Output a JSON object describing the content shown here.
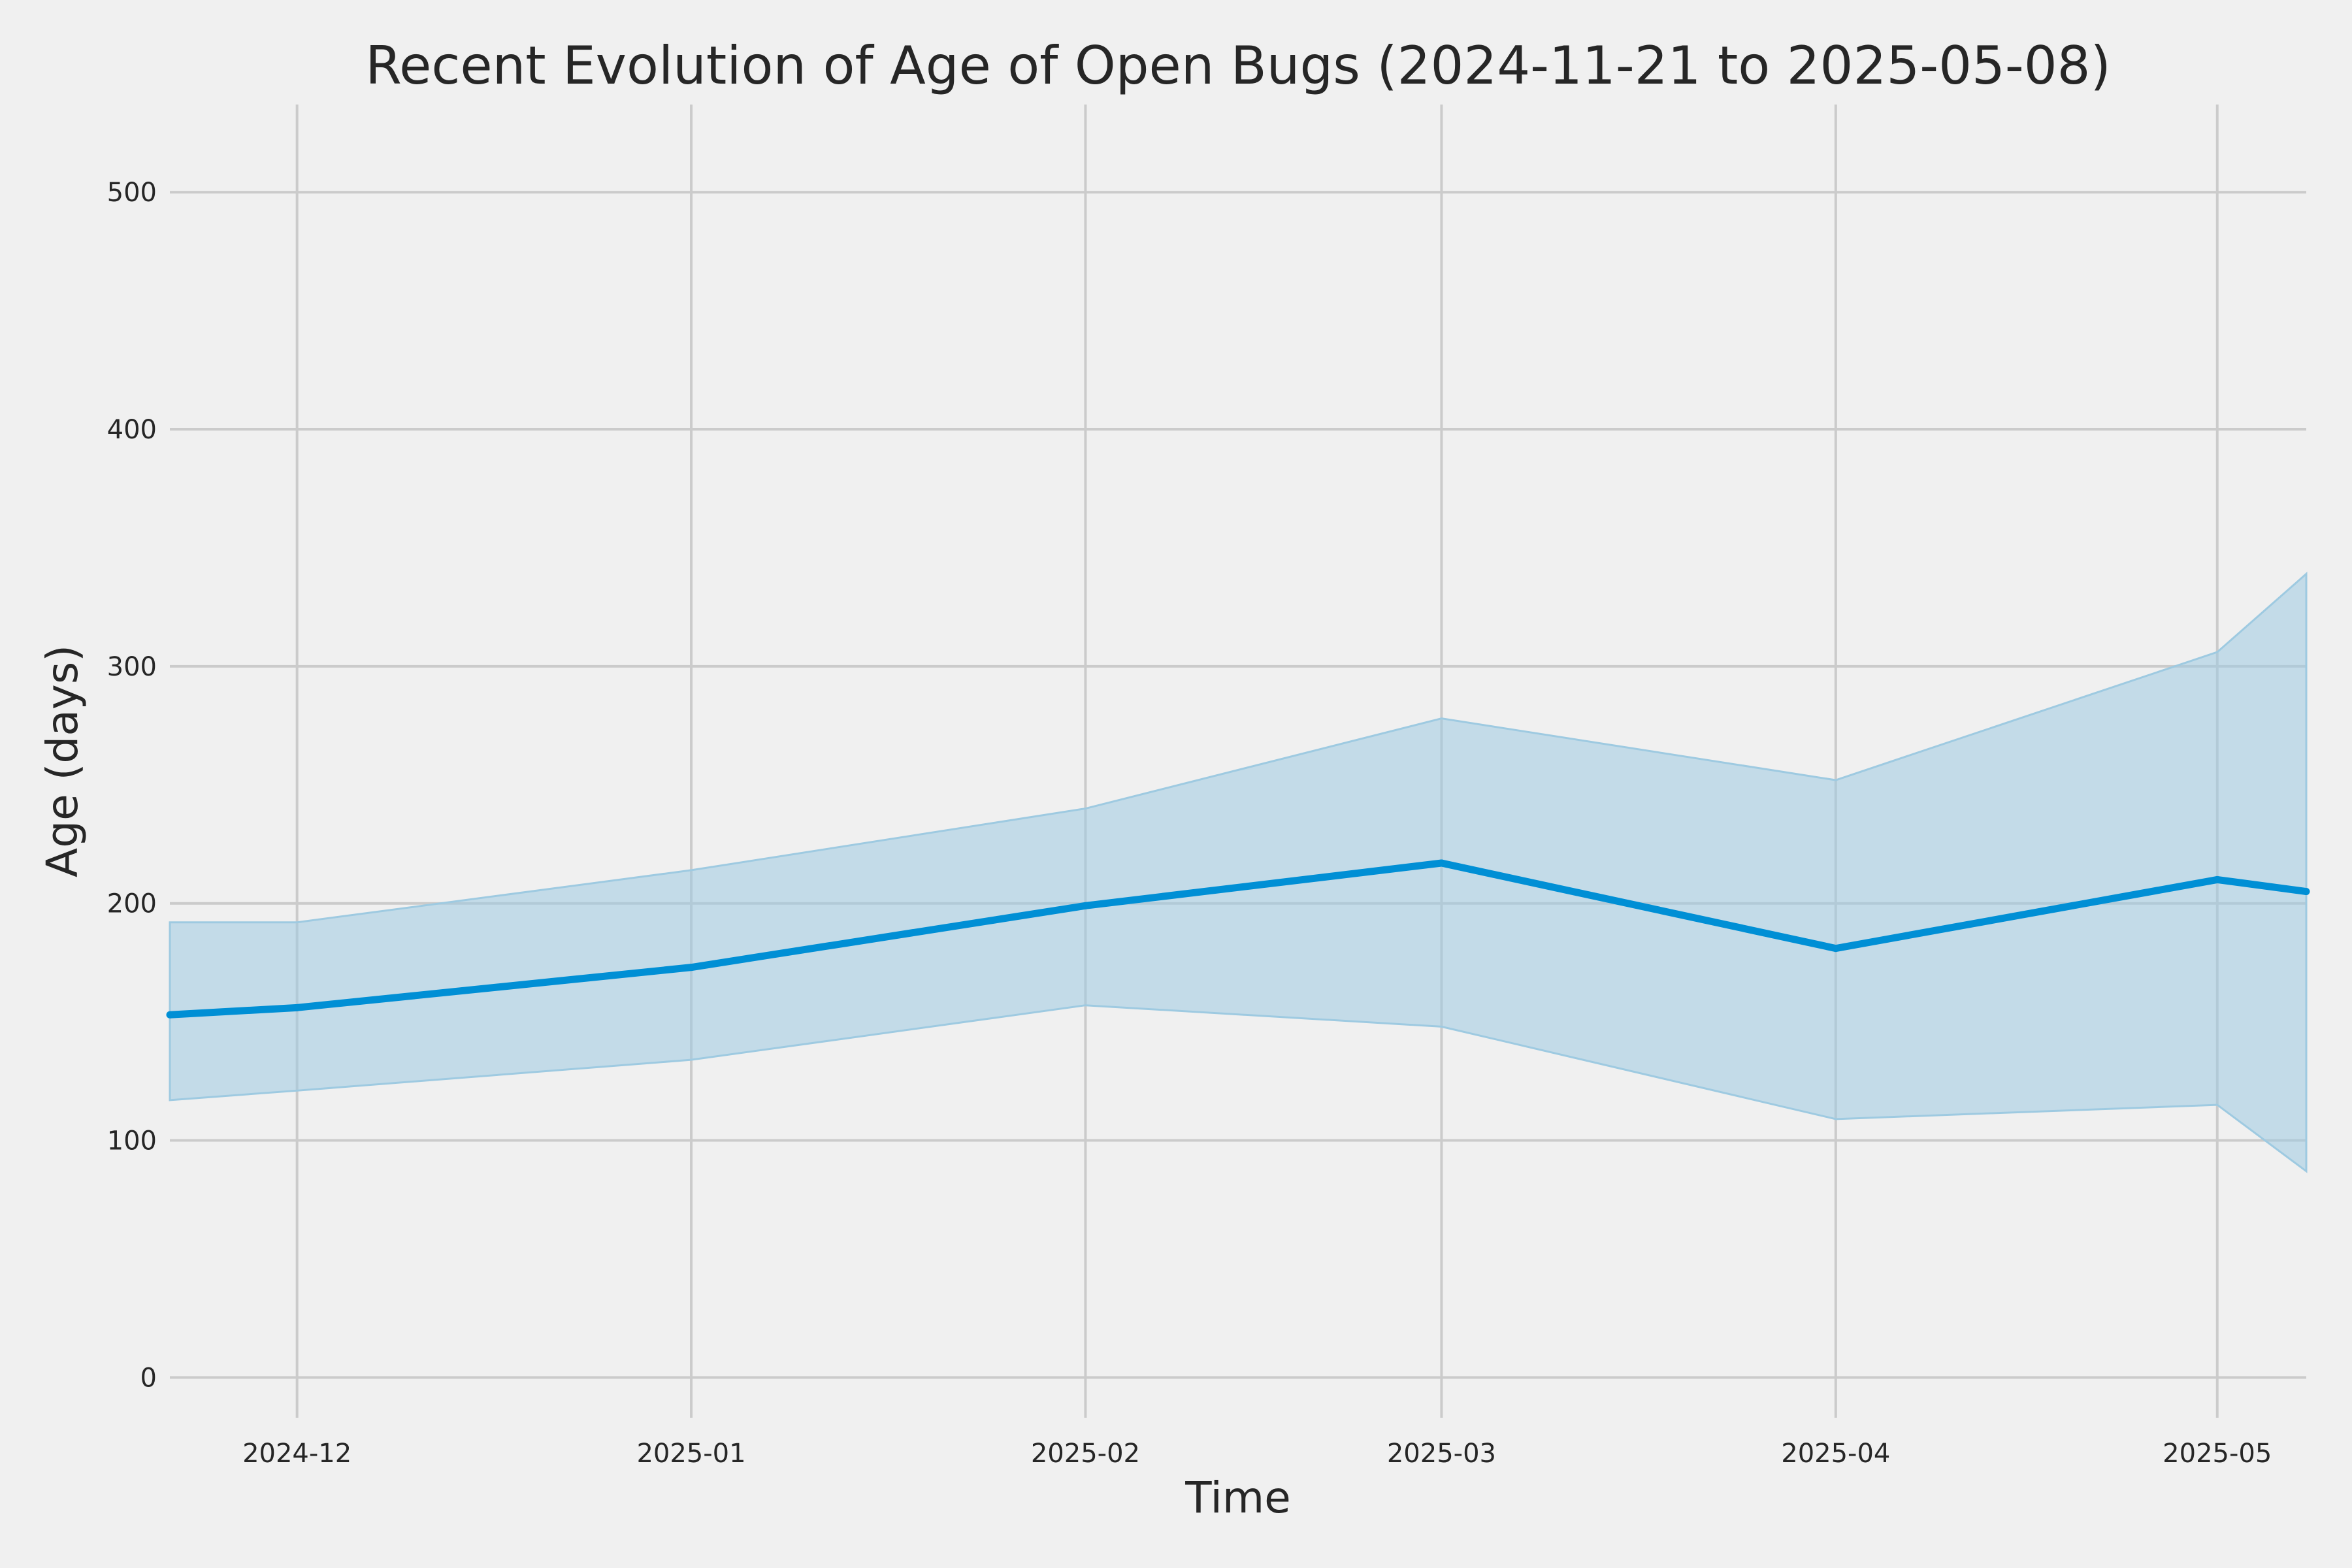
{
  "chart_data": {
    "type": "line",
    "title": "Recent Evolution of Age of Open Bugs (2024-11-21 to 2025-05-08)",
    "xlabel": "Time",
    "ylabel": "Age (days)",
    "x_range": [
      "2024-11-21",
      "2025-05-08"
    ],
    "ylim": [
      -17,
      537
    ],
    "grid": true,
    "x_ticks": [
      {
        "date": "2024-12-01",
        "label": "2024-12"
      },
      {
        "date": "2025-01-01",
        "label": "2025-01"
      },
      {
        "date": "2025-02-01",
        "label": "2025-02"
      },
      {
        "date": "2025-03-01",
        "label": "2025-03"
      },
      {
        "date": "2025-04-01",
        "label": "2025-04"
      },
      {
        "date": "2025-05-01",
        "label": "2025-05"
      }
    ],
    "y_ticks": [
      0,
      100,
      200,
      300,
      400,
      500
    ],
    "x": [
      "2024-11-21",
      "2024-12-01",
      "2025-01-01",
      "2025-02-01",
      "2025-03-01",
      "2025-04-01",
      "2025-05-01",
      "2025-05-08"
    ],
    "series": [
      {
        "values": [
          153,
          156,
          173,
          199,
          217,
          181,
          210,
          205
        ],
        "lower": [
          117,
          121,
          134,
          157,
          148,
          109,
          115,
          87
        ],
        "upper": [
          192,
          192,
          214,
          240,
          278,
          252,
          306,
          339
        ],
        "color": "#008fd5",
        "band_color": "#9ecae1"
      }
    ]
  }
}
